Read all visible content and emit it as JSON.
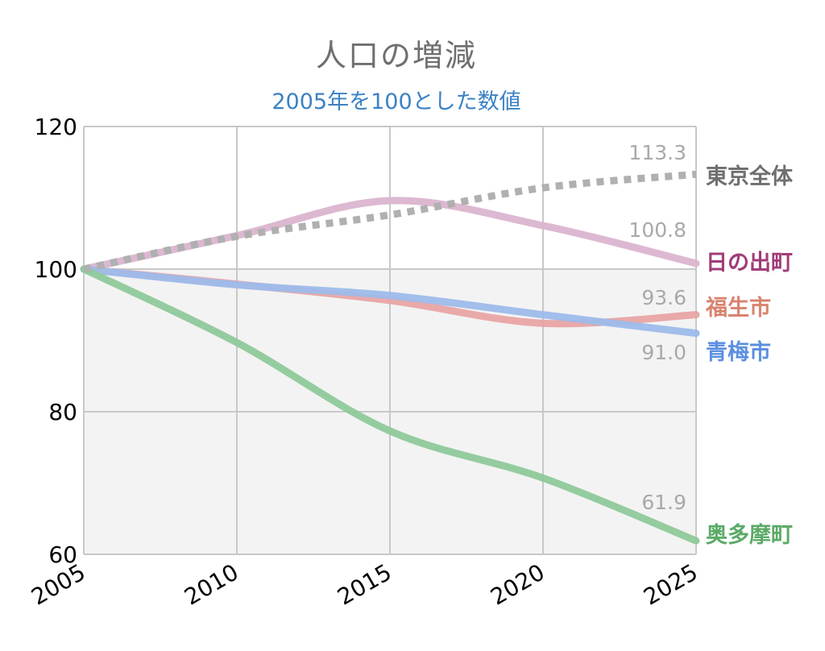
{
  "header": {
    "title": "人口の増減",
    "subtitle": "2005年を100とした数値"
  },
  "chart_data": {
    "type": "line",
    "title": "人口の増減",
    "subtitle": "2005年を100とした数値",
    "xlabel": "",
    "ylabel": "",
    "x": [
      2005,
      2010,
      2015,
      2020,
      2025
    ],
    "xlim": [
      2005,
      2025
    ],
    "ylim": [
      60,
      120
    ],
    "yticks": [
      60,
      80,
      100,
      120
    ],
    "grid": true,
    "shaded_below": 100,
    "series": [
      {
        "name": "東京全体",
        "values": [
          100,
          104.6,
          107.6,
          111.4,
          113.3
        ],
        "end_label": "113.3",
        "color": "#b0b0b0",
        "style": "dotted"
      },
      {
        "name": "日の出町",
        "values": [
          100,
          104.7,
          109.6,
          106.1,
          100.8
        ],
        "end_label": "100.8",
        "color": "#dbb4cf",
        "label_color": "#a03c78",
        "style": "solid"
      },
      {
        "name": "福生市",
        "values": [
          100,
          97.9,
          95.6,
          92.4,
          93.6
        ],
        "end_label": "93.6",
        "color": "#e8a4a4",
        "label_color": "#d9826e",
        "style": "solid"
      },
      {
        "name": "青梅市",
        "values": [
          100,
          97.8,
          96.3,
          93.6,
          91.0
        ],
        "end_label": "91.0",
        "color": "#9dbbea",
        "label_color": "#5c8fe0",
        "style": "solid"
      },
      {
        "name": "奥多摩町",
        "values": [
          100,
          89.7,
          77.3,
          70.7,
          61.9
        ],
        "end_label": "61.9",
        "color": "#8ec99a",
        "label_color": "#5aaa66",
        "style": "solid"
      }
    ]
  }
}
